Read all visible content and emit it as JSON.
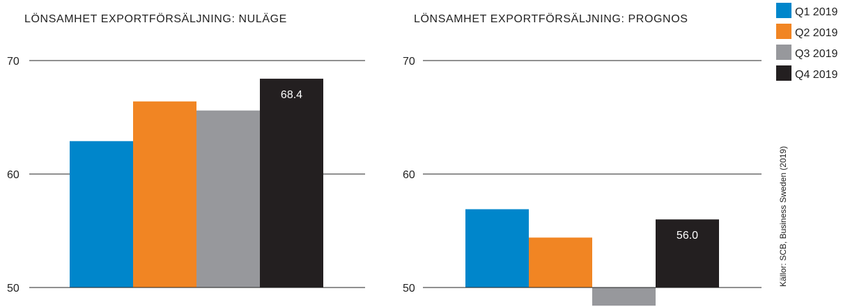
{
  "legend": {
    "items": [
      {
        "label": "Q1 2019",
        "color": "#0086cb"
      },
      {
        "label": "Q2 2019",
        "color": "#f18523"
      },
      {
        "label": "Q3 2019",
        "color": "#97989c"
      },
      {
        "label": "Q4 2019",
        "color": "#231f20"
      }
    ]
  },
  "source": "Källor: SCB, Business Sweden (2019)",
  "chart_data": [
    {
      "type": "bar",
      "title": "LÖNSAMHET EXPORTFÖRSÄLJNING: NULÄGE",
      "categories": [
        "Q1 2019",
        "Q2 2019",
        "Q3 2019",
        "Q4 2019"
      ],
      "values": [
        62.9,
        66.4,
        65.6,
        68.4
      ],
      "data_labels": [
        "",
        "",
        "",
        "68.4"
      ],
      "ylim": [
        50,
        70
      ],
      "yticks": [
        50,
        60,
        70
      ],
      "ytick_labels": [
        "50",
        "60",
        "70"
      ],
      "grid": true,
      "legend": "top-right"
    },
    {
      "type": "bar",
      "title": "LÖNSAMHET EXPORTFÖRSÄLJNING: PROGNOS",
      "categories": [
        "Q1 2019",
        "Q2 2019",
        "Q3 2019",
        "Q4 2019"
      ],
      "values": [
        56.9,
        54.4,
        48.4,
        56.0
      ],
      "data_labels": [
        "",
        "",
        "",
        "56.0"
      ],
      "ylim": [
        50,
        70
      ],
      "yticks": [
        50,
        60,
        70
      ],
      "ytick_labels": [
        "50",
        "60",
        "70"
      ],
      "grid": true,
      "legend": "top-right"
    }
  ]
}
